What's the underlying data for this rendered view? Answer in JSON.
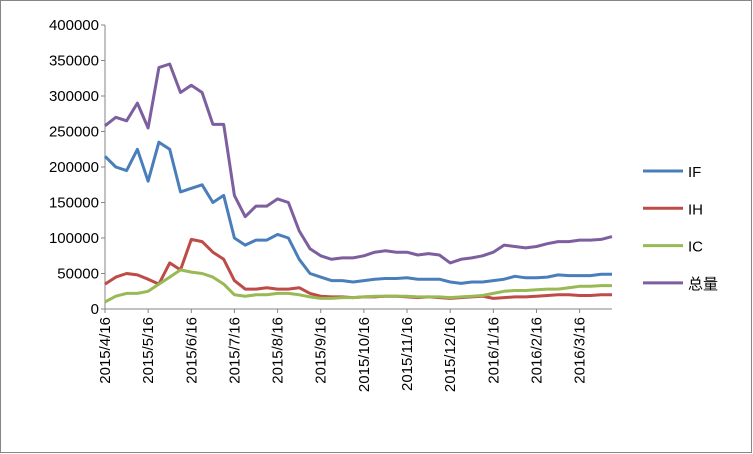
{
  "chart_data": {
    "type": "line",
    "categories": [
      "2015/4/16",
      null,
      null,
      null,
      "2015/5/16",
      null,
      null,
      null,
      "2015/6/16",
      null,
      null,
      null,
      "2015/7/16",
      null,
      null,
      null,
      "2015/8/16",
      null,
      null,
      null,
      "2015/9/16",
      null,
      null,
      null,
      "2015/10/16",
      null,
      null,
      null,
      "2015/11/16",
      null,
      null,
      null,
      "2015/12/16",
      null,
      null,
      null,
      "2016/1/16",
      null,
      null,
      null,
      "2016/2/16",
      null,
      null,
      null,
      "2016/3/16",
      null,
      null,
      null
    ],
    "series": [
      {
        "name": "IF",
        "color": "#4a7ebb",
        "values": [
          215000,
          200000,
          195000,
          225000,
          180000,
          235000,
          225000,
          165000,
          170000,
          175000,
          150000,
          160000,
          100000,
          90000,
          97000,
          97000,
          105000,
          100000,
          70000,
          50000,
          45000,
          40000,
          40000,
          38000,
          40000,
          42000,
          43000,
          43000,
          44000,
          42000,
          42000,
          42000,
          38000,
          36000,
          38000,
          38000,
          40000,
          42000,
          46000,
          44000,
          44000,
          45000,
          48000,
          47000,
          47000,
          47000,
          49000,
          49000
        ]
      },
      {
        "name": "IH",
        "color": "#be4b48",
        "values": [
          35000,
          45000,
          50000,
          48000,
          42000,
          35000,
          65000,
          55000,
          98000,
          95000,
          80000,
          70000,
          40000,
          28000,
          28000,
          30000,
          28000,
          28000,
          30000,
          22000,
          18000,
          17000,
          17000,
          16000,
          17000,
          17000,
          18000,
          18000,
          17000,
          16000,
          17000,
          16000,
          15000,
          16000,
          17000,
          18000,
          15000,
          16000,
          17000,
          17000,
          18000,
          19000,
          20000,
          20000,
          19000,
          19000,
          20000,
          20000
        ]
      },
      {
        "name": "IC",
        "color": "#98b954",
        "values": [
          10000,
          18000,
          22000,
          22000,
          25000,
          35000,
          45000,
          55000,
          52000,
          50000,
          45000,
          35000,
          20000,
          18000,
          20000,
          20000,
          22000,
          22000,
          20000,
          17000,
          15000,
          15000,
          16000,
          16000,
          17000,
          18000,
          18000,
          18000,
          18000,
          17000,
          17000,
          17000,
          16000,
          17000,
          18000,
          19000,
          22000,
          25000,
          26000,
          26000,
          27000,
          28000,
          28000,
          30000,
          32000,
          32000,
          33000,
          33000
        ]
      },
      {
        "name": "总量",
        "color": "#7d5fa0",
        "values": [
          258000,
          270000,
          265000,
          290000,
          255000,
          340000,
          345000,
          305000,
          315000,
          305000,
          260000,
          260000,
          160000,
          130000,
          145000,
          145000,
          155000,
          150000,
          110000,
          85000,
          75000,
          70000,
          72000,
          72000,
          75000,
          80000,
          82000,
          80000,
          80000,
          76000,
          78000,
          76000,
          65000,
          70000,
          72000,
          75000,
          80000,
          90000,
          88000,
          86000,
          88000,
          92000,
          95000,
          95000,
          97000,
          97000,
          98000,
          102000
        ]
      }
    ],
    "ylim": [
      0,
      400000
    ],
    "yticks": [
      0,
      50000,
      100000,
      150000,
      200000,
      250000,
      300000,
      350000,
      400000
    ],
    "grid": false,
    "legend": "right"
  }
}
